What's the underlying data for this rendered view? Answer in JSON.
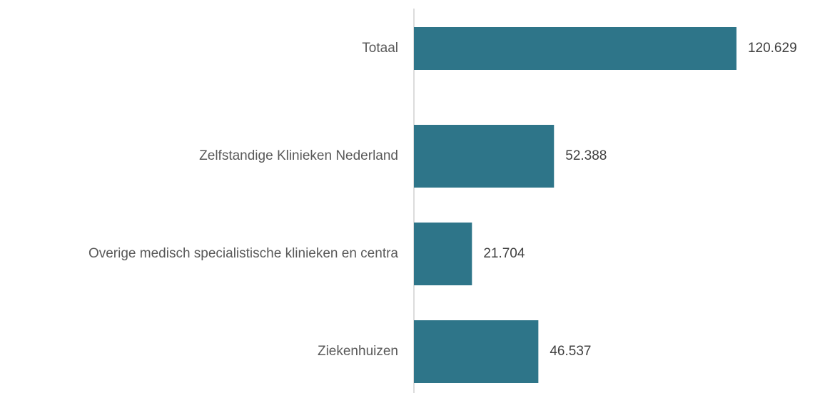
{
  "chart_data": {
    "type": "hbar",
    "categories": [
      "Totaal",
      "Zelfstandige Klinieken Nederland",
      "Overige medisch specialistische klinieken en centra",
      "Ziekenhuizen"
    ],
    "values": [
      120629,
      52388,
      21704,
      46537
    ],
    "value_labels": [
      "120.629",
      "52.388",
      "21.704",
      "46.537"
    ],
    "color": "#2e7589",
    "xlim": [
      0,
      150000
    ]
  }
}
